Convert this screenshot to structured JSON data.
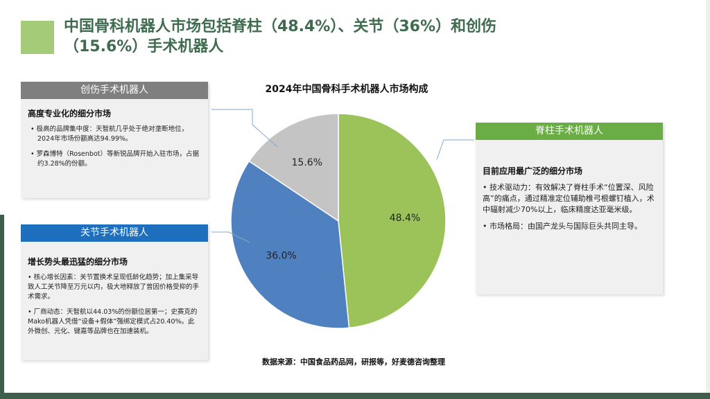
{
  "title": "中国骨科机器人市场包括脊柱（48.4%）、关节（36%）和创伤（15.6%）手术机器人",
  "cards": {
    "trauma": {
      "header": "创伤手术机器人",
      "header_color": "#7f7f7f",
      "subtitle": "高度专业化的细分市场",
      "bullets": [
        "•  极高的品牌集中度：天智航几乎处于绝对垄断地位，2024年市场份额高达94.99%。",
        "•  罗森博特（Rosenbot）等新锐品牌开始入驻市场，占据约3.28%的份额。"
      ]
    },
    "joint": {
      "header": "关节手术机器人",
      "header_color": "#1f6fbf",
      "subtitle": "增长势头最迅猛的细分市场",
      "bullets": [
        "• 核心增长因素：关节置换术呈现低龄化趋势；加上集采导致人工关节降至万元以内，极大地释放了曾因价格受抑的手术需求。",
        "• 厂商动态：天智航以44.03%的份额位居第一；史赛克的Mako机器人凭借“设备+假体”强绑定模式占20.40%。此外微创、元化、键嘉等品牌也在加速装机。"
      ]
    },
    "spine": {
      "header": "脊柱手术机器人",
      "header_color": "#6aad45",
      "subtitle": "目前应用最广泛的细分市场",
      "bullets": [
        "• 技术驱动力：有效解决了脊柱手术“位置深、风险高”的痛点，通过精准定位辅助椎弓根螺钉植入，术中辐射减少70%以上，临床精度达亚毫米级。",
        "• 市场格局：由国产龙头与国际巨头共同主导。"
      ]
    }
  },
  "chart_data": {
    "type": "pie",
    "title": "2024年中国骨科手术机器人市场构成",
    "start": "12 o'clock, clockwise",
    "slices": [
      {
        "category": "脊柱手术机器人",
        "value": 48.4,
        "label": "48.4%",
        "color": "#9bc35a"
      },
      {
        "category": "关节手术机器人",
        "value": 36.0,
        "label": "36.0%",
        "color": "#4f80bf"
      },
      {
        "category": "创伤手术机器人",
        "value": 15.6,
        "label": "15.6%",
        "color": "#c4c4c4"
      }
    ]
  },
  "source": "数据来源：中国食品药品网，研报等，好麦德咨询整理"
}
